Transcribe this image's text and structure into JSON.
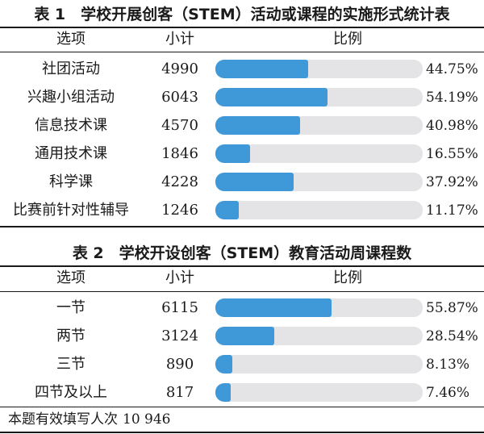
{
  "table1": {
    "title": "表 1　学校开展创客（STEM）活动或课程的实施形式统计表",
    "headers": {
      "option": "选项",
      "subtotal": "小计",
      "ratio": "比例"
    }
  },
  "table2": {
    "title": "表 2　学校开设创客（STEM）教育活动周课程数",
    "headers": {
      "option": "选项",
      "subtotal": "小计",
      "ratio": "比例"
    }
  },
  "footer": {
    "label": "本题有效填写人次",
    "value": "10 946"
  },
  "colors": {
    "bar_fill": "#3f98d8",
    "bar_track": "#e4e4e6"
  },
  "chart_data": [
    {
      "type": "table",
      "title": "表 1　学校开展创客（STEM）活动或课程的实施形式统计表",
      "columns": [
        "选项",
        "小计",
        "比例"
      ],
      "rows": [
        {
          "option": "社团活动",
          "count": 4990,
          "percent": 44.75,
          "percent_label": "44.75%"
        },
        {
          "option": "兴趣小组活动",
          "count": 6043,
          "percent": 54.19,
          "percent_label": "54.19%"
        },
        {
          "option": "信息技术课",
          "count": 4570,
          "percent": 40.98,
          "percent_label": "40.98%"
        },
        {
          "option": "通用技术课",
          "count": 1846,
          "percent": 16.55,
          "percent_label": "16.55%"
        },
        {
          "option": "科学课",
          "count": 4228,
          "percent": 37.92,
          "percent_label": "37.92%"
        },
        {
          "option": "比赛前针对性辅导",
          "count": 1246,
          "percent": 11.17,
          "percent_label": "11.17%"
        }
      ]
    },
    {
      "type": "table",
      "title": "表 2　学校开设创客（STEM）教育活动周课程数",
      "columns": [
        "选项",
        "小计",
        "比例"
      ],
      "rows": [
        {
          "option": "一节",
          "count": 6115,
          "percent": 55.87,
          "percent_label": "55.87%"
        },
        {
          "option": "两节",
          "count": 3124,
          "percent": 28.54,
          "percent_label": "28.54%"
        },
        {
          "option": "三节",
          "count": 890,
          "percent": 8.13,
          "percent_label": "8.13%"
        },
        {
          "option": "四节及以上",
          "count": 817,
          "percent": 7.46,
          "percent_label": "7.46%"
        }
      ]
    }
  ]
}
